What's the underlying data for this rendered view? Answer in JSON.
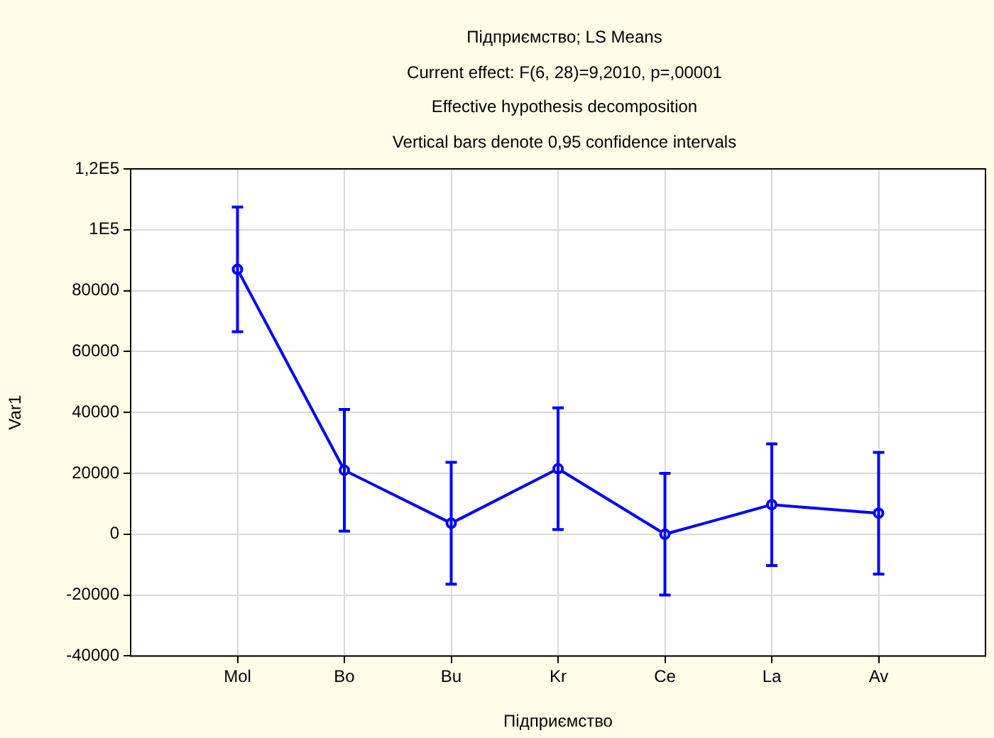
{
  "chart_data": {
    "type": "line",
    "title": "Підприємство; LS Means",
    "subtitle": "Current effect: F(6, 28)=9,2010, p=,00001",
    "annotations": [
      "Effective hypothesis decomposition",
      "Vertical bars denote 0,95 confidence intervals"
    ],
    "xlabel": "Підприємство",
    "ylabel": "Var1",
    "categories": [
      "Mol",
      "Bo",
      "Bu",
      "Kr",
      "Ce",
      "La",
      "Av"
    ],
    "series": [
      {
        "color": "#0000ff",
        "values": [
          87000,
          21000,
          3600,
          21500,
          0,
          9700,
          6900
        ],
        "errors": [
          20500,
          20000,
          20000,
          20000,
          20000,
          20000,
          20000
        ]
      }
    ],
    "ylim": [
      -40000,
      120000
    ],
    "yticks": [
      -40000,
      -20000,
      0,
      20000,
      40000,
      60000,
      80000,
      {
        "value": 100000,
        "label": "1E5"
      },
      {
        "value": 120000,
        "label": "1,2E5"
      }
    ],
    "grid": true,
    "marker": "circle",
    "line_style": "solid",
    "legend": false
  }
}
